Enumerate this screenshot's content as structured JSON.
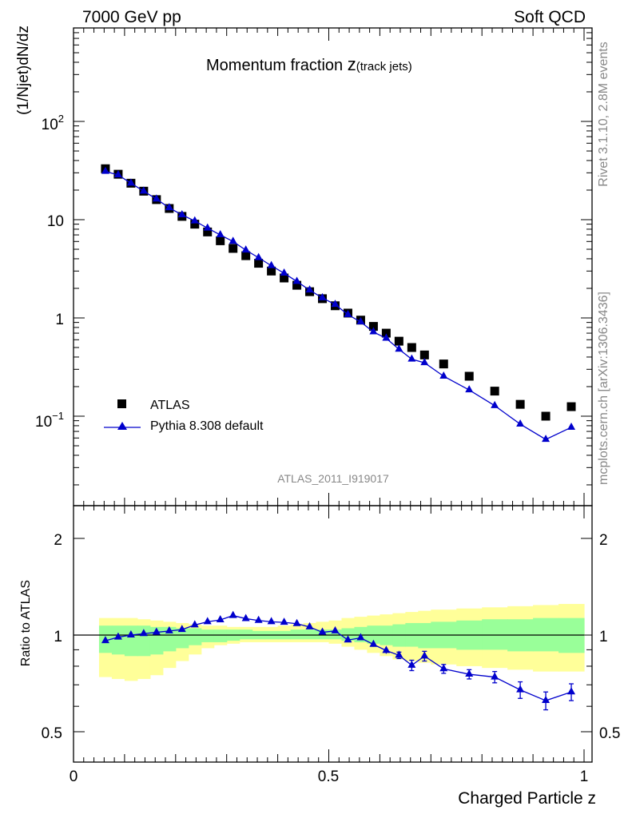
{
  "header": {
    "left": "7000 GeV pp",
    "right": "Soft QCD"
  },
  "title_main": "Momentum fraction ",
  "title_z": "z",
  "title_sub": "(track jets)",
  "analysis_id": "ATLAS_2011_I919017",
  "side": {
    "rivet": "Rivet 3.1.10,  2.8M events",
    "mcplots": "mcplots.cern.ch [arXiv:1306.3436]"
  },
  "legend": {
    "data_label": "ATLAS",
    "mc_label": "Pythia 8.308 default"
  },
  "colors": {
    "mc": "#0000cc",
    "band_inner": "#99ff99",
    "band_outer": "#ffff99",
    "data": "#000000"
  },
  "ticks": {
    "main_y": [
      "10^-1",
      "1",
      "10",
      "10^2"
    ],
    "ratio_y": [
      "0.5",
      "1",
      "2"
    ],
    "x": [
      "0",
      "0.5",
      "1"
    ]
  },
  "chart_data": [
    {
      "type": "scatter",
      "panel": "main",
      "ylabel": "(1/Njet)dN/dz",
      "xlim": [
        0,
        1
      ],
      "ylim": [
        0.009,
        700
      ],
      "yscale": "log",
      "x": [
        0.0625,
        0.0875,
        0.1125,
        0.1375,
        0.1625,
        0.1875,
        0.2125,
        0.2375,
        0.2625,
        0.2875,
        0.3125,
        0.3375,
        0.3625,
        0.3875,
        0.4125,
        0.4375,
        0.4625,
        0.4875,
        0.5125,
        0.5375,
        0.5625,
        0.5875,
        0.6125,
        0.6375,
        0.6625,
        0.6875,
        0.725,
        0.775,
        0.825,
        0.875,
        0.925,
        0.975
      ],
      "series": [
        {
          "name": "ATLAS",
          "values": [
            33.0,
            29.0,
            23.5,
            19.5,
            16.0,
            13.0,
            10.8,
            9.0,
            7.5,
            6.1,
            5.1,
            4.3,
            3.6,
            3.0,
            2.55,
            2.15,
            1.85,
            1.57,
            1.33,
            1.12,
            0.95,
            0.82,
            0.7,
            0.58,
            0.5,
            0.42,
            0.34,
            0.255,
            0.18,
            0.132,
            0.1,
            0.125
          ]
        },
        {
          "name": "Pythia 8.308 default",
          "values": [
            31.0,
            28.5,
            23.5,
            19.5,
            16.2,
            13.2,
            11.2,
            9.7,
            8.2,
            7.0,
            6.0,
            4.9,
            4.1,
            3.4,
            2.85,
            2.35,
            1.92,
            1.6,
            1.37,
            1.08,
            0.91,
            0.72,
            0.62,
            0.48,
            0.38,
            0.35,
            0.255,
            0.185,
            0.128,
            0.083,
            0.058,
            0.077
          ]
        }
      ]
    },
    {
      "type": "line",
      "panel": "ratio",
      "ylabel": "Ratio to ATLAS",
      "xlabel": "Charged Particle z",
      "xlim": [
        0,
        1
      ],
      "ylim": [
        0.35,
        2.4
      ],
      "yscale": "log",
      "x": [
        0.0625,
        0.0875,
        0.1125,
        0.1375,
        0.1625,
        0.1875,
        0.2125,
        0.2375,
        0.2625,
        0.2875,
        0.3125,
        0.3375,
        0.3625,
        0.3875,
        0.4125,
        0.4375,
        0.4625,
        0.4875,
        0.5125,
        0.5375,
        0.5625,
        0.5875,
        0.6125,
        0.6375,
        0.6625,
        0.6875,
        0.725,
        0.775,
        0.825,
        0.875,
        0.925,
        0.975
      ],
      "series": [
        {
          "name": "Pythia 8.308 default",
          "values": [
            0.96,
            0.985,
            1.0,
            1.01,
            1.02,
            1.03,
            1.04,
            1.075,
            1.1,
            1.115,
            1.15,
            1.125,
            1.11,
            1.1,
            1.095,
            1.085,
            1.06,
            1.02,
            1.03,
            0.965,
            0.98,
            0.935,
            0.895,
            0.865,
            0.805,
            0.86,
            0.785,
            0.755,
            0.74,
            0.675,
            0.625,
            0.665
          ],
          "errors": [
            0.015,
            0.01,
            0.01,
            0.01,
            0.01,
            0.01,
            0.01,
            0.01,
            0.01,
            0.01,
            0.01,
            0.01,
            0.01,
            0.01,
            0.01,
            0.01,
            0.01,
            0.01,
            0.01,
            0.01,
            0.015,
            0.015,
            0.02,
            0.02,
            0.03,
            0.03,
            0.025,
            0.025,
            0.03,
            0.04,
            0.04,
            0.04
          ]
        }
      ],
      "band_edges": [
        0.05,
        0.075,
        0.1,
        0.125,
        0.15,
        0.175,
        0.2,
        0.225,
        0.25,
        0.275,
        0.3,
        0.325,
        0.35,
        0.375,
        0.4,
        0.425,
        0.45,
        0.475,
        0.5,
        0.525,
        0.55,
        0.575,
        0.6,
        0.625,
        0.65,
        0.675,
        0.7,
        0.75,
        0.8,
        0.85,
        0.9,
        0.95,
        1.0
      ],
      "band_inner": {
        "low": [
          0.88,
          0.87,
          0.86,
          0.86,
          0.87,
          0.89,
          0.91,
          0.93,
          0.95,
          0.95,
          0.96,
          0.97,
          0.97,
          0.97,
          0.97,
          0.97,
          0.97,
          0.97,
          0.97,
          0.96,
          0.95,
          0.94,
          0.93,
          0.92,
          0.92,
          0.91,
          0.91,
          0.9,
          0.9,
          0.89,
          0.89,
          0.88
        ],
        "high": [
          1.07,
          1.07,
          1.07,
          1.07,
          1.06,
          1.06,
          1.05,
          1.05,
          1.04,
          1.04,
          1.04,
          1.04,
          1.03,
          1.03,
          1.03,
          1.04,
          1.04,
          1.04,
          1.04,
          1.05,
          1.06,
          1.07,
          1.07,
          1.08,
          1.09,
          1.09,
          1.1,
          1.11,
          1.12,
          1.12,
          1.13,
          1.13
        ]
      },
      "band_outer": {
        "low": [
          0.74,
          0.73,
          0.72,
          0.73,
          0.75,
          0.79,
          0.83,
          0.87,
          0.91,
          0.93,
          0.94,
          0.95,
          0.95,
          0.95,
          0.95,
          0.95,
          0.95,
          0.95,
          0.94,
          0.92,
          0.9,
          0.88,
          0.86,
          0.84,
          0.83,
          0.82,
          0.81,
          0.8,
          0.79,
          0.78,
          0.77,
          0.77
        ],
        "high": [
          1.13,
          1.13,
          1.13,
          1.12,
          1.11,
          1.1,
          1.09,
          1.08,
          1.07,
          1.07,
          1.06,
          1.06,
          1.06,
          1.06,
          1.07,
          1.08,
          1.09,
          1.1,
          1.11,
          1.13,
          1.14,
          1.15,
          1.16,
          1.17,
          1.18,
          1.19,
          1.2,
          1.21,
          1.22,
          1.23,
          1.24,
          1.25
        ]
      }
    }
  ]
}
